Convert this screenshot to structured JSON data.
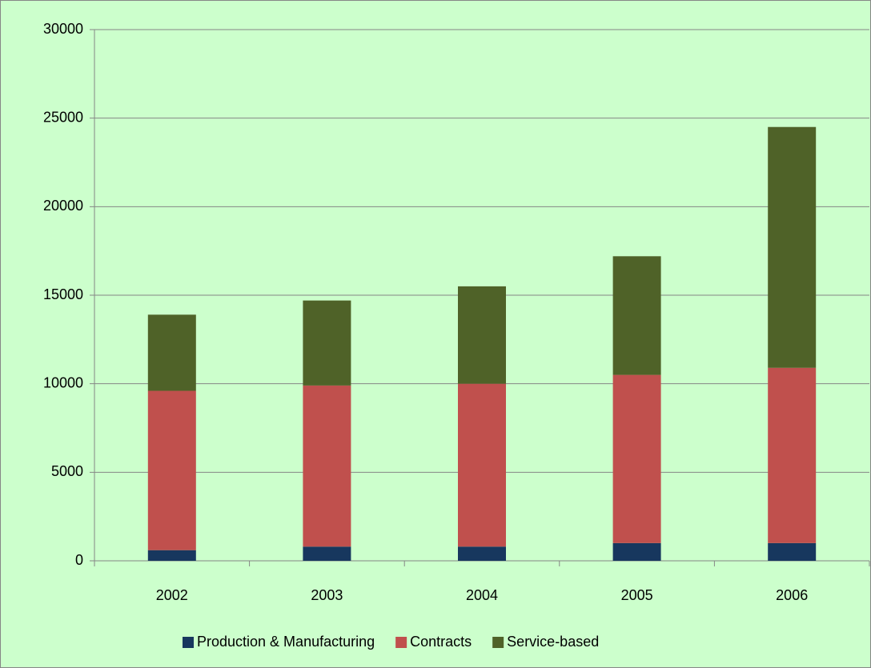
{
  "chart_data": {
    "type": "stacked_bar",
    "categories": [
      "2002",
      "2003",
      "2004",
      "2005",
      "2006"
    ],
    "series": [
      {
        "name": "Production & Manufacturing",
        "color": "#17375e",
        "values": [
          600,
          800,
          800,
          1000,
          1000
        ]
      },
      {
        "name": "Contracts",
        "color": "#c0504d",
        "values": [
          9000,
          9100,
          9200,
          9500,
          9900
        ]
      },
      {
        "name": "Service-based",
        "color": "#4f6228",
        "values": [
          4300,
          4800,
          5500,
          6700,
          13600
        ]
      }
    ],
    "ylim": [
      0,
      30000
    ],
    "yticks": [
      0,
      5000,
      10000,
      15000,
      20000,
      25000,
      30000
    ],
    "grid": true,
    "legend": "bottom"
  }
}
